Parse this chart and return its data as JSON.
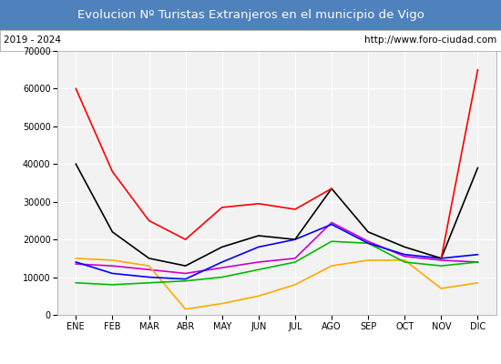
{
  "title": "Evolucion Nº Turistas Extranjeros en el municipio de Vigo",
  "subtitle_left": "2019 - 2024",
  "subtitle_right": "http://www.foro-ciudad.com",
  "months": [
    "ENE",
    "FEB",
    "MAR",
    "ABR",
    "MAY",
    "JUN",
    "JUL",
    "AGO",
    "SEP",
    "OCT",
    "NOV",
    "DIC"
  ],
  "ylim": [
    0,
    70000
  ],
  "yticks": [
    0,
    10000,
    20000,
    30000,
    40000,
    50000,
    60000,
    70000
  ],
  "series": {
    "2024": {
      "color": "#ff0000",
      "data": [
        60000,
        38000,
        25000,
        20000,
        28500,
        29500,
        28000,
        33500,
        null,
        null,
        15000,
        65000
      ]
    },
    "2023": {
      "color": "#000000",
      "data": [
        40000,
        22000,
        15000,
        13000,
        18000,
        21000,
        20000,
        33500,
        22000,
        18000,
        15000,
        39000
      ]
    },
    "2022": {
      "color": "#0000ff",
      "data": [
        14000,
        11000,
        10000,
        9500,
        14000,
        18000,
        20000,
        24000,
        19000,
        16000,
        15000,
        16000
      ]
    },
    "2021": {
      "color": "#00bb00",
      "data": [
        8500,
        8000,
        8500,
        9000,
        10000,
        12000,
        14000,
        19500,
        19000,
        14000,
        13000,
        14000
      ]
    },
    "2020": {
      "color": "#ffaa00",
      "data": [
        15000,
        14500,
        13000,
        1500,
        3000,
        5000,
        8000,
        13000,
        14500,
        14500,
        7000,
        8500
      ]
    },
    "2019": {
      "color": "#cc00cc",
      "data": [
        13500,
        13000,
        12000,
        11000,
        12500,
        14000,
        15000,
        24500,
        19500,
        15500,
        14500,
        14000
      ]
    }
  },
  "title_bg_color": "#4f81bd",
  "title_text_color": "#ffffff",
  "subtitle_bg_color": "#ffffff",
  "plot_bg_color": "#f2f2f2",
  "grid_color": "#ffffff",
  "border_color": "#aaaaaa",
  "fig_width": 5.5,
  "fig_height": 4.0,
  "dpi": 100
}
